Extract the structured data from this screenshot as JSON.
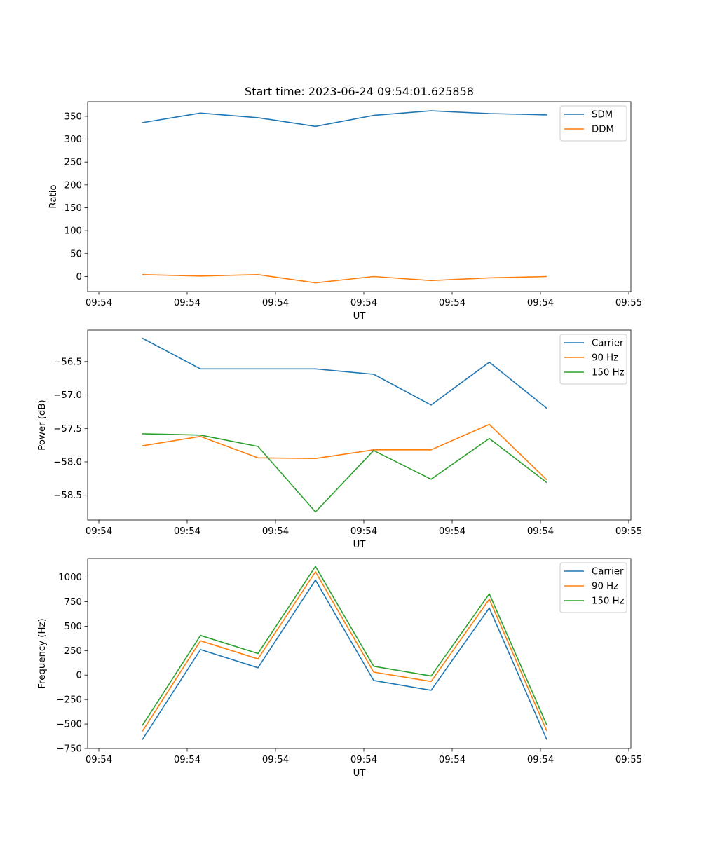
{
  "figure_title": "Start time: 2023-06-24 09:54:01.625858",
  "x_ticks": [
    "09:54",
    "09:54",
    "09:54",
    "09:54",
    "09:54",
    "09:54",
    "09:55"
  ],
  "colors": {
    "blue": "#1f77b4",
    "orange": "#ff7f0e",
    "green": "#2ca02c"
  },
  "chart_data": [
    {
      "type": "line",
      "title": "Start time: 2023-06-24 09:54:01.625858",
      "xlabel": "UT",
      "ylabel": "Ratio",
      "x": [
        1,
        2,
        3,
        4,
        5,
        6,
        7,
        8
      ],
      "ylim": [
        -33,
        382
      ],
      "y_ticks": [
        0,
        50,
        100,
        150,
        200,
        250,
        300,
        350
      ],
      "legend_position": "upper right",
      "grid": false,
      "series": [
        {
          "name": "SDM",
          "color": "#1f77b4",
          "values": [
            336,
            357,
            347,
            328,
            352,
            362,
            356,
            353
          ]
        },
        {
          "name": "DDM",
          "color": "#ff7f0e",
          "values": [
            4,
            1,
            4,
            -14,
            0,
            -9,
            -3,
            0
          ]
        }
      ]
    },
    {
      "type": "line",
      "xlabel": "UT",
      "ylabel": "Power (dB)",
      "x": [
        1,
        2,
        3,
        4,
        5,
        6,
        7,
        8
      ],
      "ylim": [
        -58.87,
        -56.03
      ],
      "y_ticks": [
        -56.5,
        -57.0,
        -57.5,
        -58.0,
        -58.5
      ],
      "legend_position": "upper right",
      "grid": false,
      "series": [
        {
          "name": "Carrier",
          "color": "#1f77b4",
          "values": [
            -56.15,
            -56.61,
            -56.61,
            -56.61,
            -56.69,
            -57.15,
            -56.51,
            -57.2
          ]
        },
        {
          "name": "90 Hz",
          "color": "#ff7f0e",
          "values": [
            -57.76,
            -57.62,
            -57.94,
            -57.95,
            -57.82,
            -57.82,
            -57.44,
            -58.27
          ]
        },
        {
          "name": "150 Hz",
          "color": "#2ca02c",
          "values": [
            -57.58,
            -57.6,
            -57.77,
            -58.75,
            -57.83,
            -58.26,
            -57.65,
            -58.31
          ]
        }
      ]
    },
    {
      "type": "line",
      "xlabel": "UT",
      "ylabel": "Frequency (Hz)",
      "x": [
        1,
        2,
        3,
        4,
        5,
        6,
        7,
        8
      ],
      "ylim": [
        -750,
        1190
      ],
      "y_ticks": [
        -750,
        -500,
        -250,
        0,
        250,
        500,
        750,
        1000
      ],
      "legend_position": "upper right",
      "grid": false,
      "series": [
        {
          "name": "Carrier",
          "color": "#1f77b4",
          "values": [
            -660,
            260,
            75,
            970,
            -55,
            -155,
            685,
            -660
          ]
        },
        {
          "name": "90 Hz",
          "color": "#ff7f0e",
          "values": [
            -575,
            350,
            165,
            1055,
            30,
            -65,
            775,
            -570
          ]
        },
        {
          "name": "150 Hz",
          "color": "#2ca02c",
          "values": [
            -515,
            405,
            220,
            1110,
            90,
            -10,
            830,
            -510
          ]
        }
      ]
    }
  ]
}
